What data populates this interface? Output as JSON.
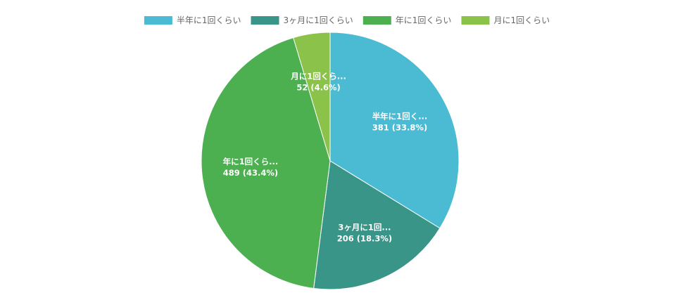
{
  "chart_data": {
    "type": "pie",
    "categories": [
      "半年に1回くらい",
      "3ヶ月に1回くらい",
      "年に1回くらい",
      "月に1回くらい"
    ],
    "values": [
      381,
      206,
      489,
      52
    ],
    "percent_labels": [
      "33.8%",
      "18.3%",
      "43.4%",
      "4.6%"
    ],
    "slice_labels": [
      "半年に1回く...",
      "3ヶ月に1回...",
      "年に1回くら...",
      "月に1回くら..."
    ],
    "colors": [
      "#4BBBD3",
      "#389587",
      "#4CAF50",
      "#8BC34A"
    ],
    "legend_position": "top",
    "start_angle": "top",
    "direction": "clockwise"
  }
}
